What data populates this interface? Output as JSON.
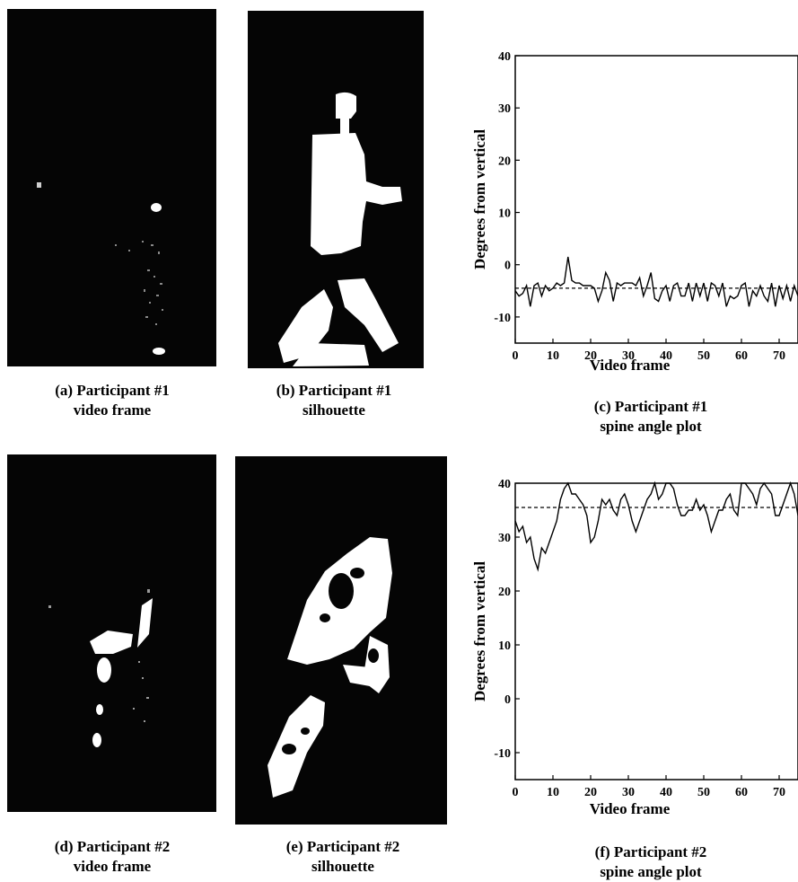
{
  "captions": {
    "a": [
      "(a) Participant #1",
      "video frame"
    ],
    "b": [
      "(b) Participant #1",
      "silhouette"
    ],
    "c": [
      "(c) Participant #1",
      "spine angle plot"
    ],
    "d": [
      "(d) Participant #2",
      "video frame"
    ],
    "e": [
      "(e) Participant #2",
      "silhouette"
    ],
    "f": [
      "(f) Participant #2",
      "spine angle plot"
    ]
  },
  "chart_data": [
    {
      "type": "line",
      "xlabel": "Video frame",
      "ylabel": "Degrees from vertical",
      "xlim": [
        0,
        75
      ],
      "ylim": [
        -15,
        40
      ],
      "xticks": [
        0,
        10,
        20,
        30,
        40,
        50,
        60,
        70
      ],
      "yticks": [
        -10,
        0,
        10,
        20,
        30,
        40
      ],
      "mean_line": -4.5,
      "series": [
        {
          "x": [
            0,
            1,
            2,
            3,
            4,
            5,
            6,
            7,
            8,
            9,
            10,
            11,
            12,
            13,
            14,
            15,
            16,
            17,
            18,
            19,
            20,
            21,
            22,
            23,
            24,
            25,
            26,
            27,
            28,
            29,
            30,
            31,
            32,
            33,
            34,
            35,
            36,
            37,
            38,
            39,
            40,
            41,
            42,
            43,
            44,
            45,
            46,
            47,
            48,
            49,
            50,
            51,
            52,
            53,
            54,
            55,
            56,
            57,
            58,
            59,
            60,
            61,
            62,
            63,
            64,
            65,
            66,
            67,
            68,
            69,
            70,
            71,
            72,
            73,
            74,
            75
          ],
          "y": [
            -5,
            -6,
            -5.5,
            -4,
            -8,
            -4,
            -3.5,
            -6,
            -4,
            -5,
            -4.5,
            -3.5,
            -4,
            -3.5,
            1.5,
            -3,
            -3.5,
            -3.5,
            -4,
            -4,
            -4,
            -4.5,
            -7,
            -5,
            -1.5,
            -3,
            -7,
            -3.5,
            -4,
            -3.5,
            -3.5,
            -3.5,
            -4,
            -2.5,
            -6,
            -4,
            -1.5,
            -6.5,
            -7,
            -5,
            -4,
            -7,
            -4,
            -3.5,
            -6,
            -6,
            -3.5,
            -7,
            -3.5,
            -6,
            -3.5,
            -7,
            -3.5,
            -4,
            -6,
            -3.5,
            -8,
            -6,
            -6.5,
            -6,
            -4,
            -3.5,
            -8,
            -5,
            -6,
            -4,
            -6,
            -7,
            -3.5,
            -8,
            -4,
            -6.5,
            -4,
            -7,
            -4,
            -6
          ]
        }
      ]
    },
    {
      "type": "line",
      "xlabel": "Video frame",
      "ylabel": "Degrees from vertical",
      "xlim": [
        0,
        75
      ],
      "ylim": [
        -15,
        40
      ],
      "xticks": [
        0,
        10,
        20,
        30,
        40,
        50,
        60,
        70
      ],
      "yticks": [
        -10,
        0,
        10,
        20,
        30,
        40
      ],
      "mean_line": 35.5,
      "series": [
        {
          "x": [
            0,
            1,
            2,
            3,
            4,
            5,
            6,
            7,
            8,
            9,
            10,
            11,
            12,
            13,
            14,
            15,
            16,
            17,
            18,
            19,
            20,
            21,
            22,
            23,
            24,
            25,
            26,
            27,
            28,
            29,
            30,
            31,
            32,
            33,
            34,
            35,
            36,
            37,
            38,
            39,
            40,
            41,
            42,
            43,
            44,
            45,
            46,
            47,
            48,
            49,
            50,
            51,
            52,
            53,
            54,
            55,
            56,
            57,
            58,
            59,
            60,
            61,
            62,
            63,
            64,
            65,
            66,
            67,
            68,
            69,
            70,
            71,
            72,
            73,
            74,
            75
          ],
          "y": [
            33,
            31,
            32,
            29,
            30,
            26,
            24,
            28,
            27,
            29,
            31,
            33,
            37,
            39,
            40,
            38,
            38,
            37,
            36,
            34,
            29,
            30,
            33,
            37,
            36,
            37,
            35,
            34,
            37,
            38,
            36,
            33,
            31,
            33,
            35,
            37,
            38,
            40,
            37,
            38,
            40,
            40,
            39,
            36,
            34,
            34,
            35,
            35,
            37,
            35,
            36,
            34,
            31,
            33,
            35,
            35,
            37,
            38,
            35,
            34,
            40,
            40,
            39,
            38,
            36,
            39,
            40,
            39,
            38,
            34,
            34,
            36,
            38,
            40,
            38,
            34
          ]
        }
      ]
    }
  ]
}
